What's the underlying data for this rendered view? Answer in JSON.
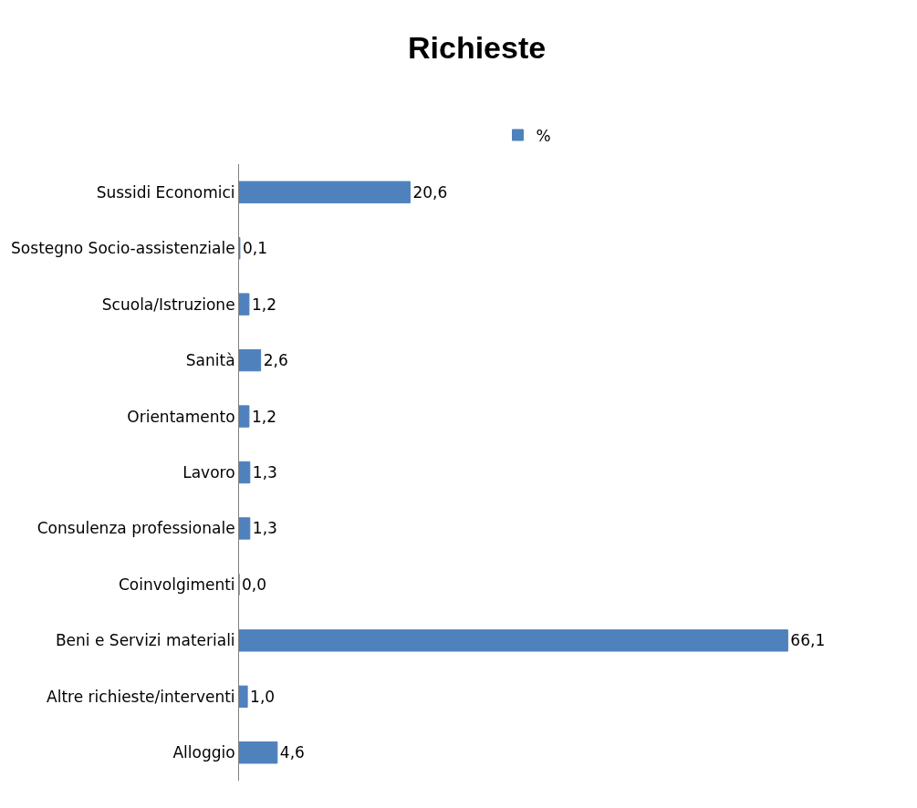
{
  "chart_data": {
    "type": "bar",
    "orientation": "horizontal",
    "title": "Richieste",
    "categories": [
      "Sussidi Economici",
      "Sostegno Socio-assistenziale",
      "Scuola/Istruzione",
      "Sanità",
      "Orientamento",
      "Lavoro",
      "Consulenza professionale",
      "Coinvolgimenti",
      "Beni e Servizi materiali",
      "Altre richieste/interventi",
      "Alloggio"
    ],
    "series": [
      {
        "name": "%",
        "color": "#4f81bd",
        "values": [
          20.6,
          0.1,
          1.2,
          2.6,
          1.2,
          1.3,
          1.3,
          0.0,
          66.1,
          1.0,
          4.6
        ],
        "value_labels": [
          "20,6",
          "0,1",
          "1,2",
          "2,6",
          "1,2",
          "1,3",
          "1,3",
          "0,0",
          "66,1",
          "1,0",
          "4,6"
        ]
      }
    ],
    "legend": "top"
  }
}
